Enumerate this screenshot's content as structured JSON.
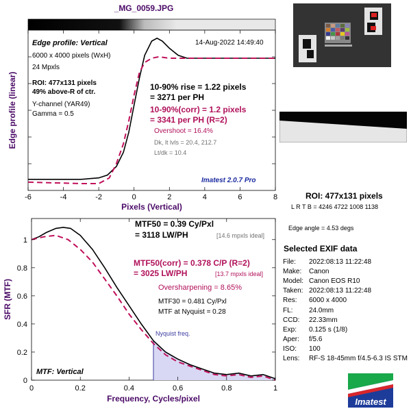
{
  "file_title": "_MG_0059.JPG",
  "edge_panel": {
    "title": "Edge profile: Vertical",
    "timestamp": "14-Aug-2022 14:49:40",
    "info_lines": [
      "6000 x 4000 pixels (WxH)",
      "24 Mpxls"
    ],
    "roi_line1": "ROI: 477x131 pixels",
    "roi_line2": "49% above-R of ctr.",
    "channel": "Y-channel  (YAR49)",
    "gamma": "Gamma = 0.5",
    "rise_line1": "10-90% rise = 1.22 pixels",
    "rise_line2": "= 3271 per PH",
    "corr_line1": "10-90%(corr) = 1.2 pixels",
    "corr_line2": "= 3341 per PH  (R=2)",
    "overshoot": "Overshoot = 16.4%",
    "dk_lt": "Dk, lt lvls = 20.4, 212.7",
    "lt_dk": "Lt/dk = 10.4",
    "version": "Imatest 2.0.7 Pro"
  },
  "sfr_panel": {
    "title": "MTF: Vertical",
    "nyquist_label": "Nyquist freq.",
    "mtf50_line1": "MTF50 = 0.39 Cy/Pxl",
    "mtf50_line2": "= 3118 LW/PH",
    "mtf50_ideal": "[14.6 mpxls ideal]",
    "corr_line1": "MTF50(corr) = 0.378 C/P  (R=2)",
    "corr_line2": "= 3025 LW/PH",
    "corr_ideal": "[13.7 mpxls ideal]",
    "oversharpening": "Oversharpening = 8.65%",
    "mtf30": "MTF30 = 0.481 Cy/Pxl",
    "mtf_nyquist": "MTF at Nyquist = 0.28"
  },
  "right_panel": {
    "roi_title": "ROI: 477x131 pixels",
    "lrtb": "L R  T B = 4246 4722  1008 1138",
    "edge_angle": "Edge angle = 4.53 degs",
    "exif_title": "Selected EXIF data",
    "exif": [
      {
        "key": "File:",
        "value": "2022:08:13 11:22:48"
      },
      {
        "key": "Make:",
        "value": "Canon"
      },
      {
        "key": "Model:",
        "value": "Canon EOS R10"
      },
      {
        "key": "Taken:",
        "value": "2022:08:13 11:22:48"
      },
      {
        "key": "Res:",
        "value": "6000 x 4000"
      },
      {
        "key": "FL:",
        "value": "24.0mm"
      },
      {
        "key": "CCD:",
        "value": "22.33mm"
      },
      {
        "key": "Exp:",
        "value": "0.125 s  (1/8)"
      },
      {
        "key": "Aper:",
        "value": "f/5.6"
      },
      {
        "key": "ISO:",
        "value": "100"
      },
      {
        "key": "Lens:",
        "value": "RF-S 18-45mm f/4.5-6.3 IS STM"
      }
    ],
    "logo_text": "Imatest"
  },
  "colors": {
    "measured": "#000000",
    "corrected": "#c0105a",
    "nyquist_fill": "#d8d8f4",
    "nyquist_text": "#3a3aa0",
    "axis_label": "#4a0a66"
  },
  "chart_data": [
    {
      "type": "line",
      "title": "Edge profile: Vertical",
      "xlabel": "Pixels (Vertical)",
      "ylabel": "Edge profile (linear)",
      "xlim": [
        -6,
        8
      ],
      "xticks": [
        -6,
        -4,
        -2,
        0,
        2,
        4,
        6,
        8
      ],
      "series": [
        {
          "values": [
            [
              -6,
              0.03
            ],
            [
              -5,
              0.03
            ],
            [
              -4,
              0.03
            ],
            [
              -3,
              0.03
            ],
            [
              -2,
              0.04
            ],
            [
              -1.5,
              0.06
            ],
            [
              -1,
              0.12
            ],
            [
              -0.6,
              0.22
            ],
            [
              -0.3,
              0.36
            ],
            [
              0,
              0.55
            ],
            [
              0.3,
              0.74
            ],
            [
              0.6,
              0.9
            ],
            [
              1,
              1.0
            ],
            [
              1.3,
              1.02
            ],
            [
              1.6,
              1.0
            ],
            [
              2,
              0.95
            ],
            [
              2.5,
              0.9
            ],
            [
              3,
              0.88
            ],
            [
              4,
              0.88
            ],
            [
              5,
              0.88
            ],
            [
              6,
              0.88
            ],
            [
              7,
              0.88
            ],
            [
              8,
              0.88
            ]
          ]
        },
        {
          "values": [
            [
              -6,
              0.01
            ],
            [
              -3,
              0.0
            ],
            [
              -2,
              0.0
            ],
            [
              -1.4,
              0.04
            ],
            [
              -1,
              0.14
            ],
            [
              -0.6,
              0.28
            ],
            [
              -0.3,
              0.44
            ],
            [
              0,
              0.62
            ],
            [
              0.3,
              0.78
            ],
            [
              0.6,
              0.85
            ],
            [
              1,
              0.88
            ],
            [
              1.4,
              0.89
            ],
            [
              2,
              0.88
            ],
            [
              3,
              0.88
            ],
            [
              4,
              0.88
            ],
            [
              6,
              0.88
            ],
            [
              8,
              0.88
            ]
          ]
        }
      ]
    },
    {
      "type": "line",
      "title": "MTF: Vertical",
      "xlabel": "Frequency, Cycles/pixel",
      "ylabel": "SFR (MTF)",
      "xlim": [
        0,
        1
      ],
      "ylim": [
        0,
        1.15
      ],
      "xticks": [
        0,
        0.2,
        0.4,
        0.6,
        0.8,
        1
      ],
      "yticks": [
        0,
        0.2,
        0.4,
        0.6,
        0.8,
        1
      ],
      "nyquist": 0.5,
      "series": [
        {
          "values": [
            [
              0,
              1.0
            ],
            [
              0.03,
              1.02
            ],
            [
              0.06,
              1.05
            ],
            [
              0.1,
              1.08
            ],
            [
              0.13,
              1.087
            ],
            [
              0.16,
              1.08
            ],
            [
              0.2,
              1.03
            ],
            [
              0.25,
              0.93
            ],
            [
              0.3,
              0.8
            ],
            [
              0.35,
              0.66
            ],
            [
              0.4,
              0.53
            ],
            [
              0.45,
              0.4
            ],
            [
              0.5,
              0.28
            ],
            [
              0.55,
              0.2
            ],
            [
              0.6,
              0.15
            ],
            [
              0.65,
              0.11
            ],
            [
              0.7,
              0.08
            ],
            [
              0.75,
              0.05
            ],
            [
              0.8,
              0.04
            ],
            [
              0.85,
              0.05
            ],
            [
              0.9,
              0.03
            ],
            [
              0.95,
              0.04
            ],
            [
              1,
              0.01
            ]
          ]
        },
        {
          "values": [
            [
              0,
              1.0
            ],
            [
              0.05,
              1.02
            ],
            [
              0.1,
              1.03
            ],
            [
              0.15,
              1.0
            ],
            [
              0.2,
              0.93
            ],
            [
              0.25,
              0.84
            ],
            [
              0.3,
              0.72
            ],
            [
              0.35,
              0.6
            ],
            [
              0.4,
              0.47
            ],
            [
              0.45,
              0.36
            ],
            [
              0.5,
              0.26
            ],
            [
              0.55,
              0.18
            ],
            [
              0.6,
              0.13
            ],
            [
              0.65,
              0.1
            ],
            [
              0.7,
              0.07
            ],
            [
              0.75,
              0.04
            ],
            [
              0.8,
              0.03
            ],
            [
              0.85,
              0.04
            ],
            [
              0.9,
              0.02
            ],
            [
              0.95,
              0.03
            ],
            [
              1,
              0.0
            ]
          ]
        }
      ]
    }
  ]
}
